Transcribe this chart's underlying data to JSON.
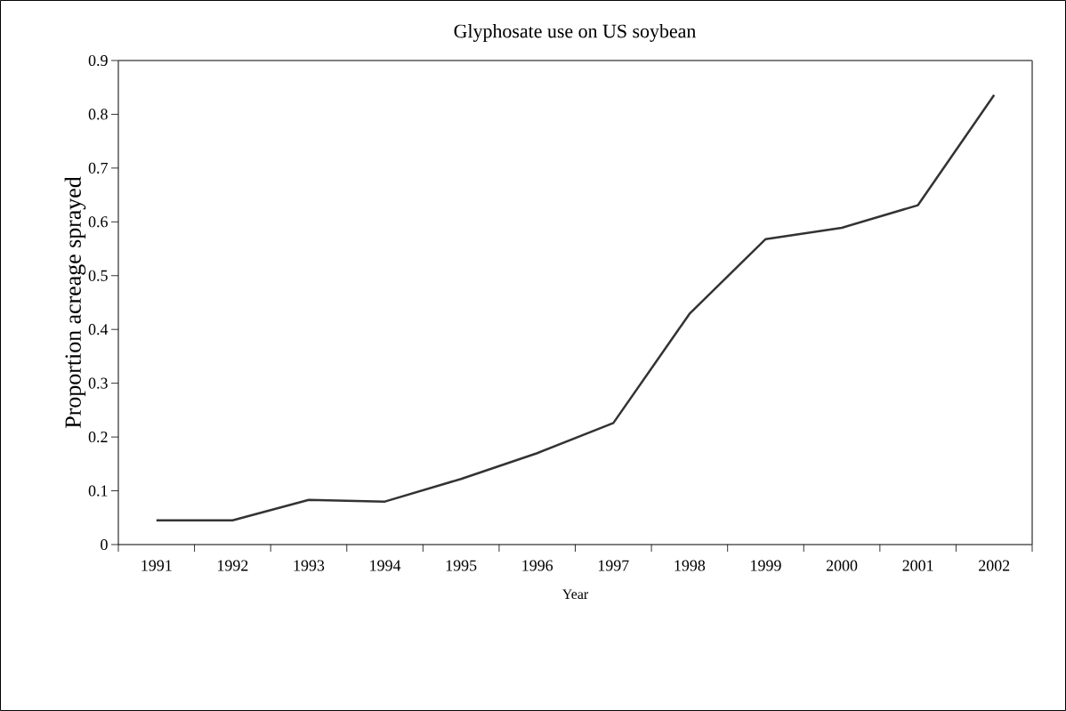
{
  "chart_data": {
    "type": "line",
    "title": "Glyphosate use on US soybean",
    "xlabel": "Year",
    "ylabel": "Proportion acreage sprayed",
    "categories": [
      "1991",
      "1992",
      "1993",
      "1994",
      "1995",
      "1996",
      "1997",
      "1998",
      "1999",
      "2000",
      "2001",
      "2002"
    ],
    "series": [
      {
        "color": "#333333",
        "values": [
          0.045,
          0.045,
          0.083,
          0.08,
          0.122,
          0.17,
          0.226,
          0.429,
          0.568,
          0.589,
          0.631,
          0.836
        ]
      }
    ],
    "ylim": [
      0,
      0.9
    ],
    "yticks": [
      0,
      0.1,
      0.2,
      0.3,
      0.4,
      0.5,
      0.6,
      0.7,
      0.8,
      0.9
    ],
    "marker": "none",
    "line_style": "solid"
  }
}
